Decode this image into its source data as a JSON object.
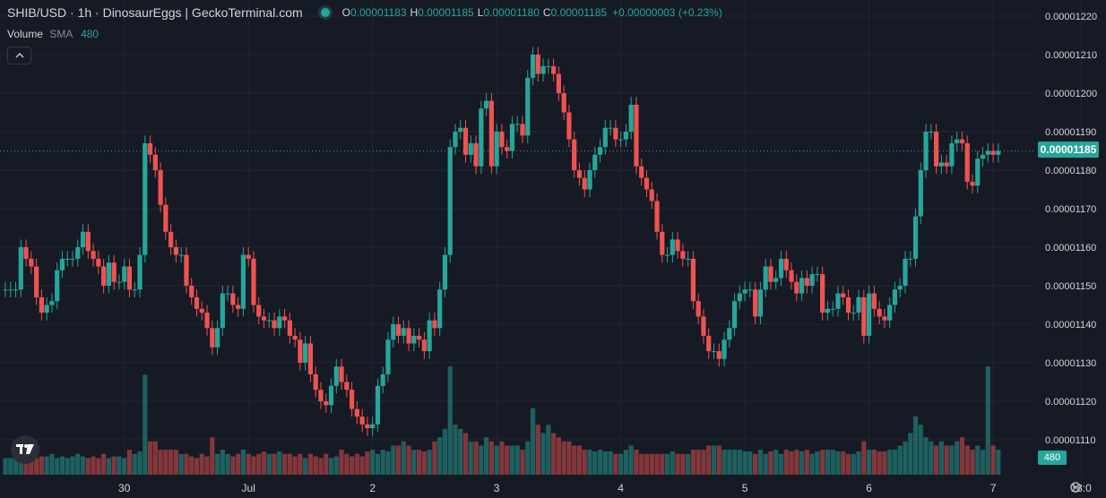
{
  "header": {
    "title": "SHIB/USD · 1h · DinosaurEggs  |  GeckoTerminal.com",
    "open_key": "O",
    "open": "0.00001183",
    "high_key": "H",
    "high": "0.00001185",
    "low_key": "L",
    "low": "0.00001180",
    "close_key": "C",
    "close": "0.00001185",
    "change": "+0.00000003 (+0.23%)"
  },
  "volume_legend": {
    "name": "Volume",
    "ma_type": "SMA",
    "length": "480"
  },
  "icons": {
    "collapse": "chevron-up-icon",
    "logo": "tradingview-logo-icon",
    "settings": "gear-icon"
  },
  "price_tag": "0.00001185",
  "volume_tag": "480",
  "colors": {
    "up": "#26a69a",
    "down": "#ef5350",
    "background": "#161a25",
    "grid": "#232632"
  },
  "chart_data": {
    "type": "candlestick",
    "y_axis_ticks": [
      "0.00001220",
      "0.00001210",
      "0.00001200",
      "0.00001190",
      "0.00001180",
      "0.00001170",
      "0.00001160",
      "0.00001150",
      "0.00001140",
      "0.00001130",
      "0.00001120",
      "0.00001110"
    ],
    "ylim": [
      1.105e-05,
      1.22e-05
    ],
    "x_axis_ticks": [
      {
        "label": "30",
        "index": 23
      },
      {
        "label": "Jul",
        "index": 47
      },
      {
        "label": "2",
        "index": 71
      },
      {
        "label": "3",
        "index": 95
      },
      {
        "label": "4",
        "index": 119
      },
      {
        "label": "5",
        "index": 143
      },
      {
        "label": "6",
        "index": 167
      },
      {
        "label": "7",
        "index": 191
      },
      {
        "label": "18:0",
        "index": 208
      }
    ],
    "last_price": 1.185e-05,
    "candles": []
  }
}
